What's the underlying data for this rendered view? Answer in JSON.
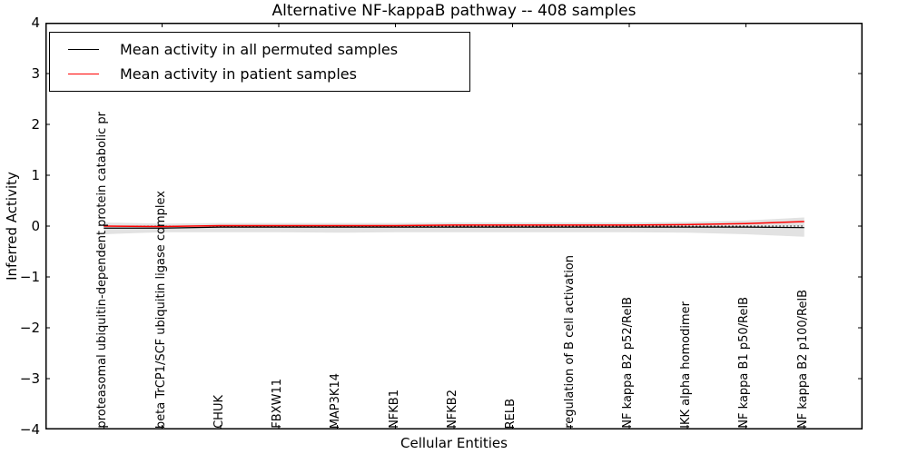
{
  "figure": {
    "title": "Alternative NF-kappaB pathway -- 408 samples",
    "xlabel": "Cellular Entities",
    "ylabel": "Inferred Activity"
  },
  "legend": {
    "items": [
      {
        "label": "Mean activity in all permuted samples",
        "color": "#000000"
      },
      {
        "label": "Mean activity in patient samples",
        "color": "#ff0000"
      }
    ]
  },
  "chart_data": {
    "type": "line",
    "title": "Alternative NF-kappaB pathway -- 408 samples",
    "xlabel": "Cellular Entities",
    "ylabel": "Inferred Activity",
    "ylim": [
      -4,
      4
    ],
    "xlim": [
      0,
      14
    ],
    "grid": false,
    "legend_position": "upper left",
    "yticks": [
      {
        "v": 4,
        "label": "4"
      },
      {
        "v": 3,
        "label": "3"
      },
      {
        "v": 2,
        "label": "2"
      },
      {
        "v": 1,
        "label": "1"
      },
      {
        "v": 0,
        "label": "0"
      },
      {
        "v": -1,
        "label": "−1"
      },
      {
        "v": -2,
        "label": "−2"
      },
      {
        "v": -3,
        "label": "−3"
      },
      {
        "v": -4,
        "label": "−4"
      }
    ],
    "top_axis_ticks_x": [
      2,
      4,
      6,
      8,
      10,
      12
    ],
    "categories": [
      "proteasomal ubiquitin-dependent protein catabolic pr",
      "beta TrCP1/SCF ubiquitin ligase complex",
      "CHUK",
      "FBXW11",
      "MAP3K14",
      "NFKB1",
      "NFKB2",
      "RELB",
      "regulation of B cell activation",
      "NF kappa B2 p52/RelB",
      "IKK alpha homodimer",
      "NF kappa B1 p50/RelB",
      "NF kappa B2 p100/RelB"
    ],
    "series": [
      {
        "name": "Mean activity in all permuted samples",
        "color": "#000000",
        "style": "solid",
        "values": [
          -0.04,
          -0.04,
          -0.02,
          -0.02,
          -0.02,
          -0.02,
          -0.02,
          -0.02,
          -0.02,
          -0.02,
          -0.02,
          -0.02,
          -0.03
        ]
      },
      {
        "name": "Mean activity in patient samples",
        "color": "#ff0000",
        "style": "solid",
        "values": [
          0.0,
          -0.01,
          0.01,
          0.01,
          0.01,
          0.01,
          0.02,
          0.02,
          0.02,
          0.02,
          0.03,
          0.05,
          0.09
        ]
      }
    ],
    "band": {
      "name": "permuted activity spread",
      "color": "#e2e2e2",
      "upper": [
        0.07,
        0.05,
        0.06,
        0.06,
        0.06,
        0.06,
        0.07,
        0.07,
        0.07,
        0.07,
        0.08,
        0.11,
        0.17
      ],
      "lower": [
        -0.16,
        -0.12,
        -0.12,
        -0.12,
        -0.13,
        -0.12,
        -0.12,
        -0.12,
        -0.12,
        -0.12,
        -0.13,
        -0.16,
        -0.21
      ]
    },
    "zero_line": {
      "y": 0,
      "style": "dotted",
      "color": "#000000"
    }
  }
}
